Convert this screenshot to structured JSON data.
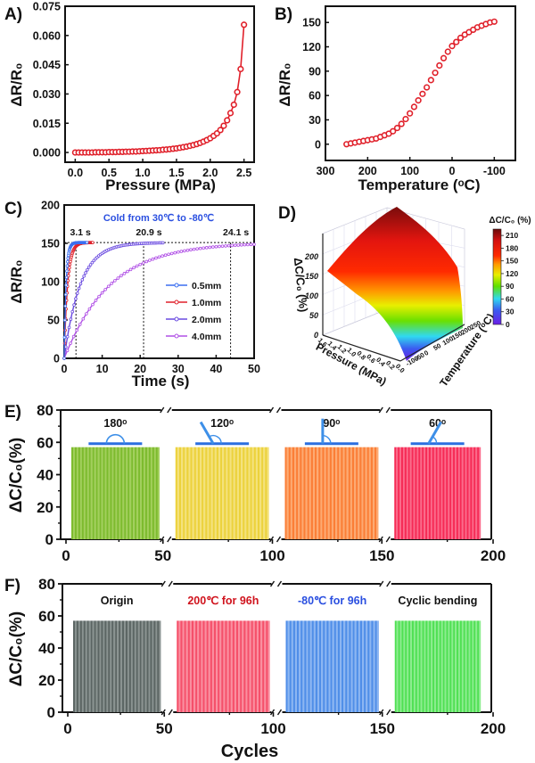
{
  "chart_data": [
    {
      "id": "A",
      "panel_label": "A)",
      "type": "line",
      "title": "",
      "xlabel": "Pressure (MPa)",
      "ylabel": "ΔR/R₀",
      "xlim": [
        -0.15,
        2.65
      ],
      "ylim": [
        -0.005,
        0.075
      ],
      "xticks": [
        0.0,
        0.5,
        1.0,
        1.5,
        2.0,
        2.5
      ],
      "xtick_labels": [
        "0.0",
        "0.5",
        "1.0",
        "1.5",
        "2.0",
        "2.5"
      ],
      "yticks": [
        0,
        0.015,
        0.03,
        0.045,
        0.06,
        0.075
      ],
      "ytick_labels": [
        "0.000",
        "0.015",
        "0.030",
        "0.045",
        "0.060",
        "0.075"
      ],
      "color": "#e0202a",
      "series": [
        {
          "name": "Pressure response",
          "x": [
            0.0,
            0.05,
            0.1,
            0.15,
            0.2,
            0.25,
            0.3,
            0.35,
            0.4,
            0.45,
            0.5,
            0.55,
            0.6,
            0.65,
            0.7,
            0.75,
            0.8,
            0.85,
            0.9,
            0.95,
            1.0,
            1.05,
            1.1,
            1.15,
            1.2,
            1.25,
            1.3,
            1.35,
            1.4,
            1.45,
            1.5,
            1.55,
            1.6,
            1.65,
            1.7,
            1.75,
            1.8,
            1.85,
            1.9,
            1.95,
            2.0,
            2.05,
            2.1,
            2.15,
            2.2,
            2.25,
            2.3,
            2.35,
            2.4,
            2.45,
            2.5
          ],
          "y": [
            0.0,
            0.0,
            0.0,
            0.0,
            0.0,
            0.0,
            0.0001,
            0.0001,
            0.0001,
            0.0001,
            0.0002,
            0.0002,
            0.0002,
            0.0003,
            0.0003,
            0.0004,
            0.0004,
            0.0005,
            0.0005,
            0.0006,
            0.0007,
            0.0008,
            0.0009,
            0.001,
            0.0011,
            0.0012,
            0.0014,
            0.0015,
            0.0017,
            0.0019,
            0.0021,
            0.0024,
            0.0027,
            0.003,
            0.0034,
            0.0038,
            0.0043,
            0.0049,
            0.0056,
            0.0064,
            0.0073,
            0.0085,
            0.0098,
            0.0115,
            0.0137,
            0.0165,
            0.0202,
            0.0245,
            0.031,
            0.0428,
            0.0655
          ]
        }
      ]
    },
    {
      "id": "B",
      "panel_label": "B)",
      "type": "scatter",
      "xlabel": "Temperature (ᵒC)",
      "ylabel": "ΔR/R₀",
      "xlim": [
        300,
        -150
      ],
      "ylim": [
        -20,
        170
      ],
      "xticks": [
        300,
        200,
        100,
        0,
        -100
      ],
      "xtick_labels": [
        "300",
        "200",
        "100",
        "0",
        "-100"
      ],
      "yticks": [
        0,
        30,
        60,
        90,
        120,
        150
      ],
      "ytick_labels": [
        "0",
        "30",
        "60",
        "90",
        "120",
        "150"
      ],
      "color": "#e0202a",
      "series": [
        {
          "name": "Temperature response",
          "x": [
            250,
            240,
            230,
            220,
            210,
            200,
            190,
            180,
            170,
            160,
            150,
            140,
            130,
            120,
            110,
            100,
            90,
            80,
            70,
            60,
            50,
            40,
            30,
            20,
            10,
            0,
            -10,
            -20,
            -30,
            -40,
            -50,
            -60,
            -70,
            -80,
            -90,
            -100
          ],
          "y": [
            0,
            1,
            2,
            3,
            4,
            5,
            6,
            7,
            9,
            11,
            13,
            16,
            20,
            25,
            31,
            38,
            46,
            54,
            62,
            70,
            79,
            88,
            97,
            106,
            114,
            121,
            126,
            131,
            135,
            138,
            141,
            144,
            146,
            148,
            150,
            151
          ]
        }
      ]
    },
    {
      "id": "C",
      "panel_label": "C)",
      "type": "line",
      "title": "Cold from 30℃ to -80℃",
      "xlabel": "Time (s)",
      "ylabel": "ΔR/R₀",
      "xlim": [
        0,
        50
      ],
      "ylim": [
        0,
        200
      ],
      "xticks": [
        0,
        10,
        20,
        30,
        40,
        50
      ],
      "xtick_labels": [
        "0",
        "10",
        "20",
        "30",
        "40",
        "50"
      ],
      "yticks": [
        0,
        50,
        100,
        150,
        200
      ],
      "ytick_labels": [
        "0",
        "50",
        "100",
        "150",
        "200"
      ],
      "plateau": 151,
      "annotations": [
        {
          "text": "3.1 s",
          "x": 3.1
        },
        {
          "text": "20.9 s",
          "x": 20.9
        },
        {
          "text": "24.1 s",
          "x": 43.8
        }
      ],
      "legend_position": "center-right",
      "series": [
        {
          "name": "0.5mm",
          "color": "#3b6ff0",
          "tau": 0.5,
          "xmax": 6
        },
        {
          "name": "1.0mm",
          "color": "#e0202a",
          "tau": 0.9,
          "xmax": 7.5
        },
        {
          "name": "2.0mm",
          "color": "#6a4ae0",
          "tau": 4.2,
          "xmax": 26
        },
        {
          "name": "4.0mm",
          "color": "#b050e6",
          "tau": 12,
          "xmax": 50
        }
      ]
    },
    {
      "id": "D",
      "panel_label": "D)",
      "type": "heatmap",
      "subtype": "3d-surface",
      "xlabel": "Pressure (MPa)",
      "ylabel": "Temperature (ᵒC)",
      "zlabel": "ΔC/C₀ (%)",
      "pressure_ticks": [
        "0.0",
        "0.2",
        "0.4",
        "0.6",
        "0.8",
        "1.0",
        "1.2",
        "1.4",
        "1.6"
      ],
      "temperature_ticks": [
        "-100",
        "-50",
        "0",
        "50",
        "100",
        "150",
        "200",
        "250"
      ],
      "z_ticks": [
        "0",
        "50",
        "100",
        "150",
        "200"
      ],
      "colorbar": {
        "title": "ΔC/C₀ (%)",
        "ticks": [
          "0",
          "30",
          "60",
          "90",
          "120",
          "150",
          "180",
          "210"
        ],
        "range": [
          0,
          225
        ]
      },
      "surface": {
        "z_at_low_temp_high_pressure": 150,
        "z_at_high_temp_low_pressure": 225,
        "z_at_low_temp_low_pressure": 0
      }
    },
    {
      "id": "E",
      "panel_label": "E)",
      "type": "bar",
      "xlabel": "",
      "ylabel": "ΔC/C₀(%)",
      "xlim": [
        0,
        200
      ],
      "ylim": [
        0,
        80
      ],
      "xticks": [
        0,
        50,
        100,
        150,
        200
      ],
      "xtick_labels": [
        "0",
        "50",
        "100",
        "150",
        "200"
      ],
      "yticks": [
        0,
        20,
        40,
        60,
        80
      ],
      "ytick_labels": [
        "0",
        "20",
        "40",
        "60",
        "80"
      ],
      "axis_breaks": [
        50,
        100,
        150
      ],
      "groups": [
        {
          "label": "180ᵒ",
          "angle": 180,
          "start": 1,
          "end": 50,
          "value": 57,
          "color": "#7dbb2e",
          "stripe": "#a2cf5c"
        },
        {
          "label": "120ᵒ",
          "angle": 120,
          "start": 51,
          "end": 100,
          "value": 57,
          "color": "#ecd23c",
          "stripe": "#f4e27c"
        },
        {
          "label": "90ᵒ",
          "angle": 90,
          "start": 101,
          "end": 150,
          "value": 57,
          "color": "#fb7e36",
          "stripe": "#fdaa72"
        },
        {
          "label": "60ᵒ",
          "angle": 60,
          "start": 151,
          "end": 200,
          "value": 57,
          "color": "#f62a55",
          "stripe": "#fb6a8a"
        }
      ]
    },
    {
      "id": "F",
      "panel_label": "F)",
      "type": "bar",
      "xlabel": "Cycles",
      "ylabel": "ΔC/C₀(%)",
      "xlim": [
        0,
        200
      ],
      "ylim": [
        0,
        80
      ],
      "xticks": [
        0,
        50,
        100,
        150,
        200
      ],
      "xtick_labels": [
        "0",
        "50",
        "100",
        "150",
        "200"
      ],
      "yticks": [
        0,
        20,
        40,
        60,
        80
      ],
      "ytick_labels": [
        "0",
        "20",
        "40",
        "60",
        "80"
      ],
      "axis_breaks": [
        50,
        100,
        150
      ],
      "groups": [
        {
          "label": "Origin",
          "label_color": "#111111",
          "start": 1,
          "end": 50,
          "value": 57,
          "color": "#5b6563",
          "stripe": "#8a9391"
        },
        {
          "label": "200℃ for 96h",
          "label_color": "#d0141e",
          "start": 51,
          "end": 100,
          "value": 57,
          "color": "#f5506a",
          "stripe": "#fa8fa0"
        },
        {
          "label": "-80℃ for 96h",
          "label_color": "#2a4fe0",
          "start": 101,
          "end": 150,
          "value": 57,
          "color": "#4f8ee8",
          "stripe": "#8cb6f2"
        },
        {
          "label": "Cyclic bending",
          "label_color": "#111111",
          "start": 151,
          "end": 200,
          "value": 57,
          "color": "#4fe053",
          "stripe": "#8ced8f"
        }
      ]
    }
  ]
}
